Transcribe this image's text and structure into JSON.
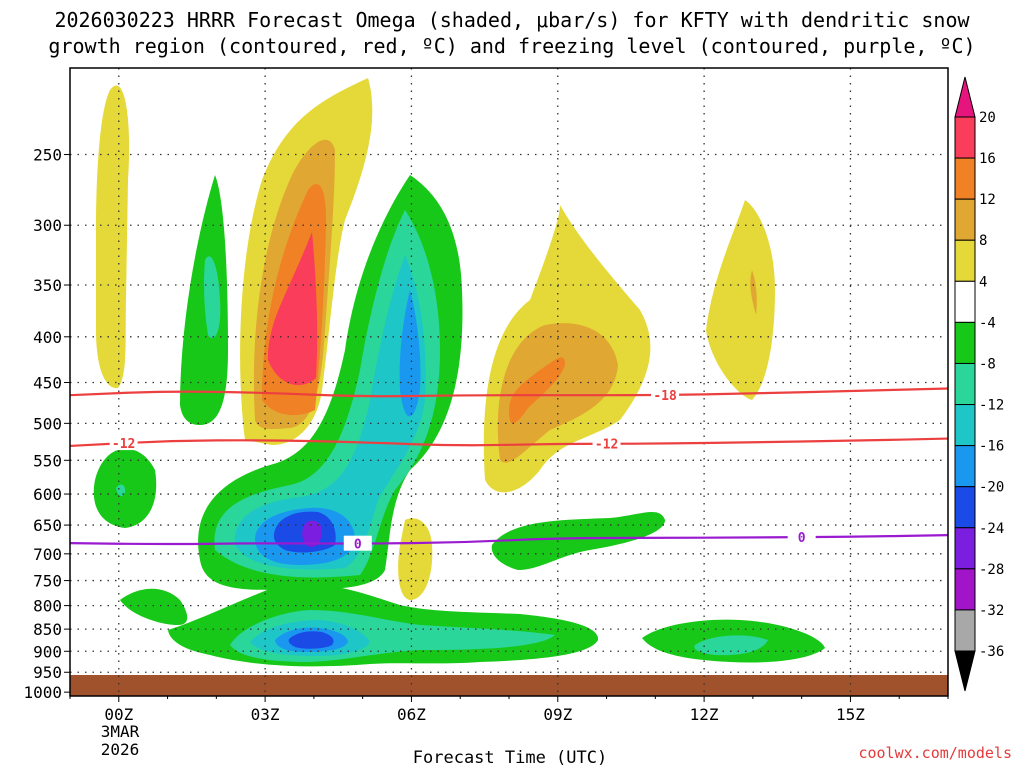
{
  "chart_data": {
    "type": "time-height contour",
    "title_line1": "2026030223 HRRR Forecast Omega (shaded, μbar/s) for KFTY with dendritic snow",
    "title_line2": "growth region (contoured, red, ºC) and freezing level (contoured, purple, ºC)",
    "xlabel": "Forecast Time (UTC)",
    "ylabel": "",
    "credit": "coolwx.com/models",
    "x_ticks": [
      "00Z",
      "03Z",
      "06Z",
      "09Z",
      "12Z",
      "15Z"
    ],
    "x_tick_hours": [
      0,
      3,
      6,
      9,
      12,
      15
    ],
    "xlim_hours": [
      -1,
      17
    ],
    "date_label_line1": "3MAR",
    "date_label_line2": "2026",
    "y_ticks": [
      250,
      300,
      350,
      400,
      450,
      500,
      550,
      600,
      650,
      700,
      750,
      800,
      850,
      900,
      950,
      1000
    ],
    "ylim_hpa": [
      200,
      1010
    ],
    "colorbar": {
      "labels": [
        "20",
        "16",
        "12",
        "8",
        "4",
        "-4",
        "-8",
        "-12",
        "-16",
        "-20",
        "-24",
        "-28",
        "-32",
        "-36"
      ],
      "colors": [
        "#f93d5b",
        "#f08124",
        "#e0a733",
        "#e5d93a",
        "#ffffff",
        "#18c818",
        "#2ad69a",
        "#1ec6c8",
        "#1a98f0",
        "#1a4be6",
        "#7b1ee0",
        "#a114c8",
        "#a8a8a8"
      ],
      "top_color": "#e6157e",
      "bottom_color": "#000000"
    },
    "contours": [
      {
        "name": "dendritic -18C",
        "label": "-18",
        "color": "#ec3f3f",
        "hours": [
          -1,
          1,
          3,
          5,
          7,
          9,
          11,
          13,
          15,
          17
        ],
        "hpa": [
          465,
          460,
          462,
          467,
          465,
          465,
          465,
          463,
          460,
          457
        ]
      },
      {
        "name": "dendritic -12C",
        "label": "-12",
        "color": "#ec3f3f",
        "hours": [
          -1,
          1,
          3,
          5,
          7,
          9,
          11,
          13,
          15,
          17
        ],
        "hpa": [
          530,
          523,
          522,
          525,
          530,
          527,
          527,
          525,
          523,
          520
        ]
      },
      {
        "name": "freezing level 0C",
        "label": "0",
        "color": "#9a1ad0",
        "hours": [
          -1,
          1,
          3,
          5,
          7,
          9,
          11,
          13,
          15,
          17
        ],
        "hpa": [
          681,
          683,
          681,
          682,
          680,
          672,
          672,
          671,
          670,
          667
        ]
      }
    ],
    "contour_label_hours": {
      "-18": 11.2,
      "-12": 0.1,
      "-12b": 10.0,
      "0": 4.9,
      "0b": 14.0
    },
    "ground_level_hpa": 1000
  }
}
